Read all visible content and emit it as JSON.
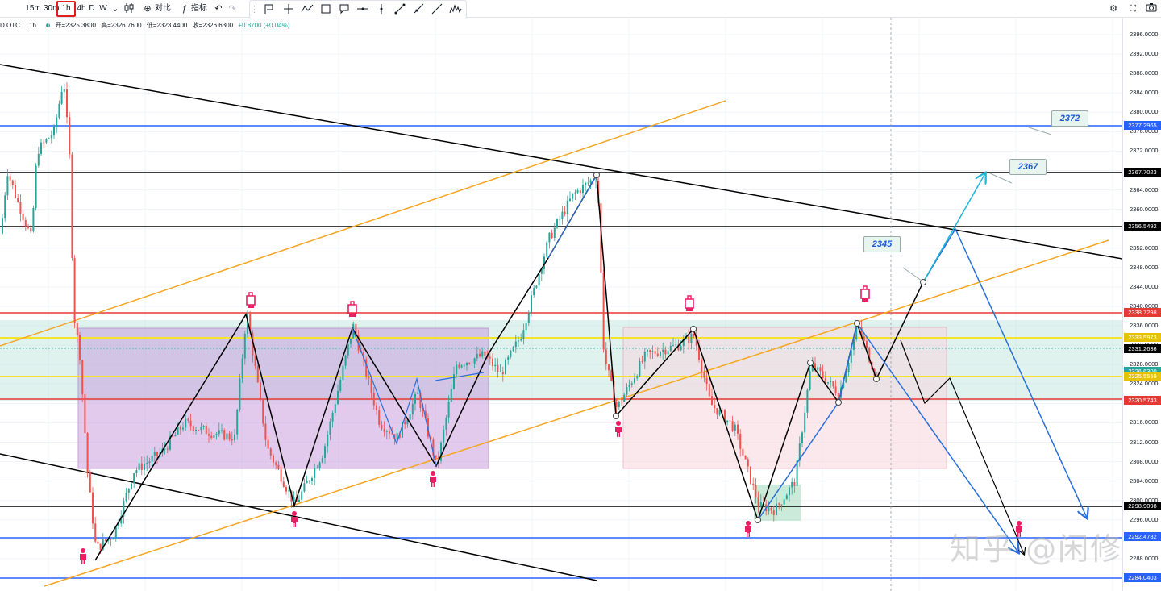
{
  "toolbar": {
    "timeframes": [
      "15m",
      "30m",
      "1h",
      "4h",
      "D",
      "W"
    ],
    "active_timeframe": "1h",
    "compare_label": "对比",
    "indicators_label": "指标"
  },
  "legend": {
    "symbol": "D.OTC",
    "timeframe": "1h",
    "open": "开=2325.3800",
    "high": "高=2326.7600",
    "low": "低=2323.4400",
    "close": "收=2326.6300",
    "change": "+0.8700 (+0.04%)"
  },
  "watermark": "知乎 @闲修",
  "colors": {
    "up": "#26a69a",
    "down": "#ef5350",
    "blue_line": "#2962ff",
    "red_line": "#e53935",
    "black_line": "#000000",
    "orange_line": "#f5a623",
    "yellow_line": "#f7e22b",
    "cyan_arrow": "#1fb5d6",
    "purple_zone": "#c9a0dc",
    "pink_zone": "#f8d7e0"
  },
  "chart_data": {
    "type": "candlestick",
    "y_axis": {
      "ylim": [
        2282,
        2398
      ],
      "ticks": [
        2284,
        2288,
        2292,
        2296,
        2300,
        2304,
        2308,
        2312,
        2316,
        2320,
        2324,
        2328,
        2332,
        2336,
        2340,
        2344,
        2348,
        2352,
        2356,
        2360,
        2364,
        2368,
        2372,
        2376,
        2380,
        2384,
        2388,
        2392,
        2396
      ],
      "tick_format": "0.0000"
    },
    "price_tags": [
      {
        "value": 2377.2965,
        "color": "#2962ff"
      },
      {
        "value": 2367.7023,
        "color": "#000000"
      },
      {
        "value": 2356.5492,
        "color": "#000000"
      },
      {
        "value": 2338.7298,
        "color": "#e53935"
      },
      {
        "value": 2333.5973,
        "color": "#e6c200"
      },
      {
        "value": 2331.2636,
        "color": "#000000"
      },
      {
        "value": 2326.63,
        "color": "#26a69a"
      },
      {
        "value": 2325.5559,
        "color": "#e6c200"
      },
      {
        "value": 2320.5743,
        "color": "#e53935"
      },
      {
        "value": 2298.9098,
        "color": "#000000"
      },
      {
        "value": 2292.4782,
        "color": "#2962ff"
      },
      {
        "value": 2284.0403,
        "color": "#2962ff"
      }
    ],
    "callouts": [
      {
        "text": "2372",
        "value": 2372
      },
      {
        "text": "2367",
        "value": 2367
      },
      {
        "text": "2345",
        "value": 2345
      }
    ]
  }
}
